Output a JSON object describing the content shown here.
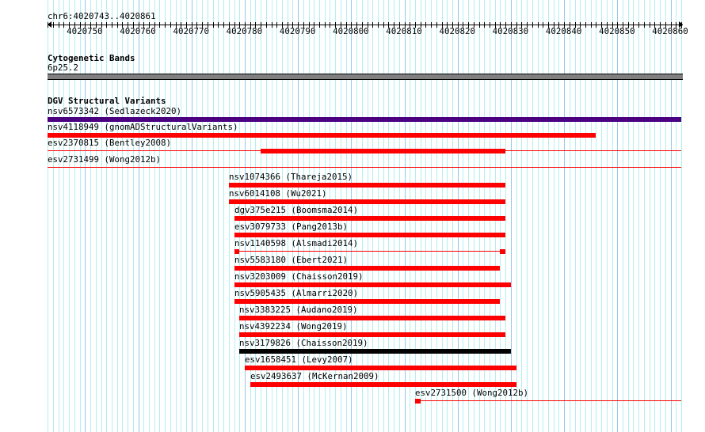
{
  "view": {
    "chrom": "chr6",
    "start": 4020743,
    "end": 4020862,
    "location_label": "chr6:4020743..4020861"
  },
  "ruler": {
    "tick_labels": [
      "4020750",
      "4020760",
      "4020770",
      "4020780",
      "4020790",
      "4020800",
      "4020810",
      "4020820",
      "4020830",
      "4020840",
      "4020850",
      "4020860"
    ]
  },
  "cytoband_track": {
    "title": "Cytogenetic Bands",
    "band_label": "6p25.2",
    "color": "#808080"
  },
  "dgv_track": {
    "title": "DGV Structural Variants",
    "colors": {
      "loss": "#ff0000",
      "complex": "#4b0082",
      "gain_loss": "#000000"
    },
    "features": [
      {
        "label": "nsv6573342 (Sedlazeck2020)",
        "color": "#4b0082",
        "start": 4020743,
        "end": 4020862
      },
      {
        "label": "nsv4118949 (gnomADStructuralVariants)",
        "color": "#ff0000",
        "start": 4020743,
        "end": 4020846
      },
      {
        "label": "esv2370815 (Bentley2008)",
        "color": "#ff0000",
        "line": [
          4020743,
          4020862
        ],
        "blocks": [
          [
            4020783,
            4020829
          ]
        ]
      },
      {
        "label": "esv2731499 (Wong2012b)",
        "color": "#ff0000",
        "line": [
          4020743,
          4020862
        ],
        "blocks": []
      },
      {
        "label": "nsv1074366 (Thareja2015)",
        "color": "#ff0000",
        "start": 4020777,
        "end": 4020829
      },
      {
        "label": "nsv6014108 (Wu2021)",
        "color": "#ff0000",
        "start": 4020777,
        "end": 4020829
      },
      {
        "label": "dgv375e215 (Boomsma2014)",
        "color": "#ff0000",
        "start": 4020778,
        "end": 4020829
      },
      {
        "label": "esv3079733 (Pang2013b)",
        "color": "#ff0000",
        "start": 4020778,
        "end": 4020829
      },
      {
        "label": "nsv1140598 (Alsmadi2014)",
        "color": "#ff0000",
        "line": [
          4020778,
          4020829
        ],
        "blocks": [
          [
            4020778,
            4020779
          ],
          [
            4020828,
            4020829
          ]
        ]
      },
      {
        "label": "nsv5583180 (Ebert2021)",
        "color": "#ff0000",
        "start": 4020778,
        "end": 4020828
      },
      {
        "label": "nsv3203009 (Chaisson2019)",
        "color": "#ff0000",
        "start": 4020778,
        "end": 4020830
      },
      {
        "label": "nsv5905435 (Almarri2020)",
        "color": "#ff0000",
        "start": 4020778,
        "end": 4020828
      },
      {
        "label": "nsv3383225 (Audano2019)",
        "color": "#ff0000",
        "start": 4020779,
        "end": 4020829
      },
      {
        "label": "nsv4392234 (Wong2019)",
        "color": "#ff0000",
        "start": 4020779,
        "end": 4020829
      },
      {
        "label": "nsv3179826 (Chaisson2019)",
        "color": "#000000",
        "start": 4020779,
        "end": 4020830
      },
      {
        "label": "esv1658451 (Levy2007)",
        "color": "#ff0000",
        "start": 4020780,
        "end": 4020831
      },
      {
        "label": "esv2493637 (McKernan2009)",
        "color": "#ff0000",
        "start": 4020781,
        "end": 4020831
      },
      {
        "label": "esv2731500 (Wong2012b)",
        "color": "#ff0000",
        "line": [
          4020813,
          4020862
        ],
        "blocks": [
          [
            4020812,
            4020813
          ]
        ]
      }
    ]
  }
}
